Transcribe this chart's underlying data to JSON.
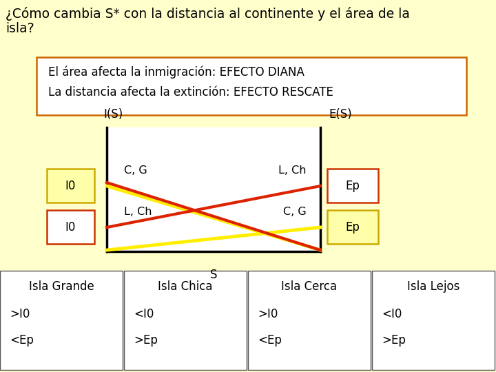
{
  "title_line1": "¿Cómo cambia S* con la distancia al continente y el área de la",
  "title_line2": "isla?",
  "box1_text1": "El área afecta la inmigración: EFECTO DIANA",
  "box1_text2": "La distancia afecta la extinción: EFECTO RESCATE",
  "box1_bg": "#ffffff",
  "box1_border": "#cc6600",
  "ylabel": "I(S)",
  "xlabel_right": "E(S)",
  "xlabel_bottom": "S",
  "i0_label1": "I0",
  "i0_label2": "I0",
  "ep_label1": "Ep",
  "ep_label2": "Ep",
  "i0_box1_facecolor": "#ffffaa",
  "i0_box1_edgecolor": "#ccaa00",
  "i0_box2_facecolor": "#ffffff",
  "i0_box2_edgecolor": "#cc3300",
  "ep_box1_facecolor": "#ffffff",
  "ep_box1_edgecolor": "#cc3300",
  "ep_box2_facecolor": "#ffffaa",
  "ep_box2_edgecolor": "#ccaa00",
  "yellow_color": "#ffee00",
  "red_color": "#dd2200",
  "line_lw": 3.0,
  "label_cg_upper": "C, G",
  "label_lch_upper": "L, Ch",
  "label_lch_lower": "L, Ch",
  "label_cg_lower": "C, G",
  "bg_color": "#ffffcc",
  "graph_bg": "#ffffff",
  "bottom_boxes": [
    {
      "title": "Isla Grande",
      "line1": ">I0",
      "line2": "<Ep"
    },
    {
      "title": "Isla Chica",
      "line1": "<I0",
      "line2": ">Ep"
    },
    {
      "title": "Isla Cerca",
      "line1": ">I0",
      "line2": "<Ep"
    },
    {
      "title": "Isla Lejos",
      "line1": "<I0",
      "line2": ">Ep"
    }
  ],
  "bottom_box_bg": "#ffffff",
  "bottom_box_border": "#555555"
}
